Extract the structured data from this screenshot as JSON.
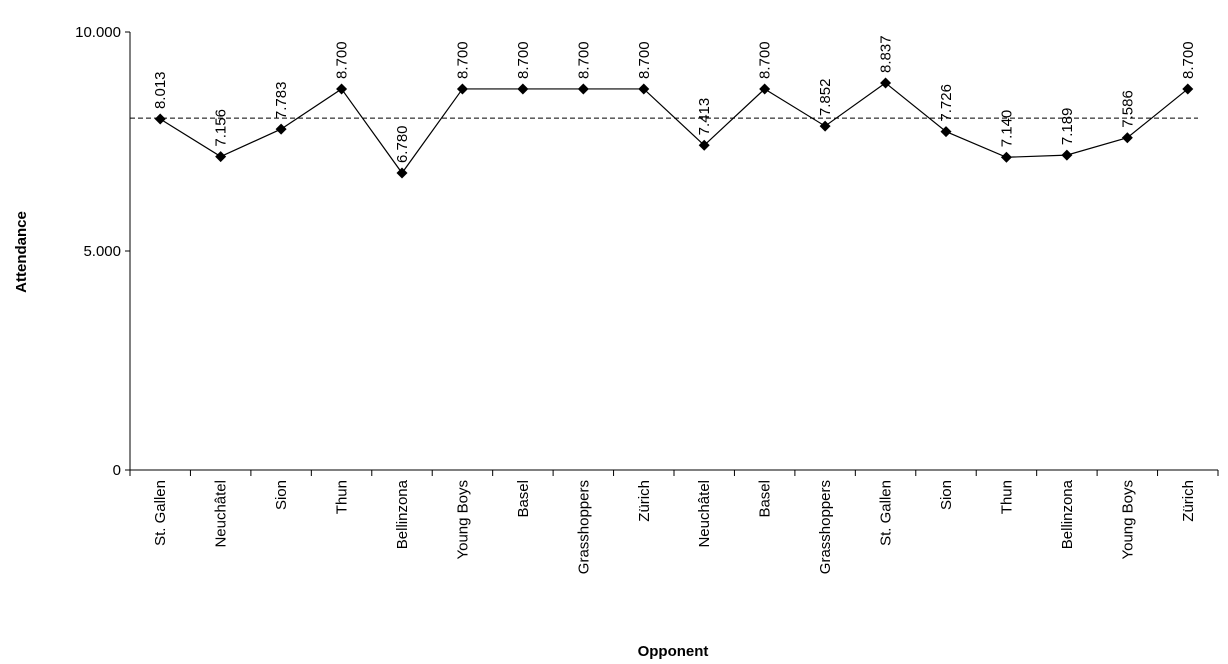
{
  "chart_data": {
    "type": "line",
    "xlabel": "Opponent",
    "ylabel": "Attendance",
    "ylim": [
      0,
      10000
    ],
    "y_ticks": [
      {
        "value": 0,
        "label": "0"
      },
      {
        "value": 5000,
        "label": "5.000"
      },
      {
        "value": 10000,
        "label": "10.000"
      }
    ],
    "categories": [
      "St. Gallen",
      "Neuchâtel",
      "Sion",
      "Thun",
      "Bellinzona",
      "Young Boys",
      "Basel",
      "Grasshoppers",
      "Zürich",
      "Neuchâtel",
      "Basel",
      "Grasshoppers",
      "St. Gallen",
      "Sion",
      "Thun",
      "Bellinzona",
      "Young Boys",
      "Zürich"
    ],
    "series": [
      {
        "values": [
          8013,
          7156,
          7783,
          8700,
          6780,
          8700,
          8700,
          8700,
          8700,
          7413,
          8700,
          7852,
          8837,
          7726,
          7140,
          7189,
          7586,
          8700
        ],
        "data_labels": [
          "8.013",
          "7.156",
          "7.783",
          "8.700",
          "6.780",
          "8.700",
          "8.700",
          "8.700",
          "8.700",
          "7.413",
          "8.700",
          "7.852",
          "8.837",
          "7.726",
          "7.140",
          "7.189",
          "7.586",
          "8.700"
        ],
        "line_style": "solid",
        "marker": "diamond",
        "color": "#000000"
      }
    ],
    "reference_line": {
      "value": 8035,
      "style": "dashed",
      "color": "#000000"
    },
    "grid": false,
    "legend": "none"
  }
}
